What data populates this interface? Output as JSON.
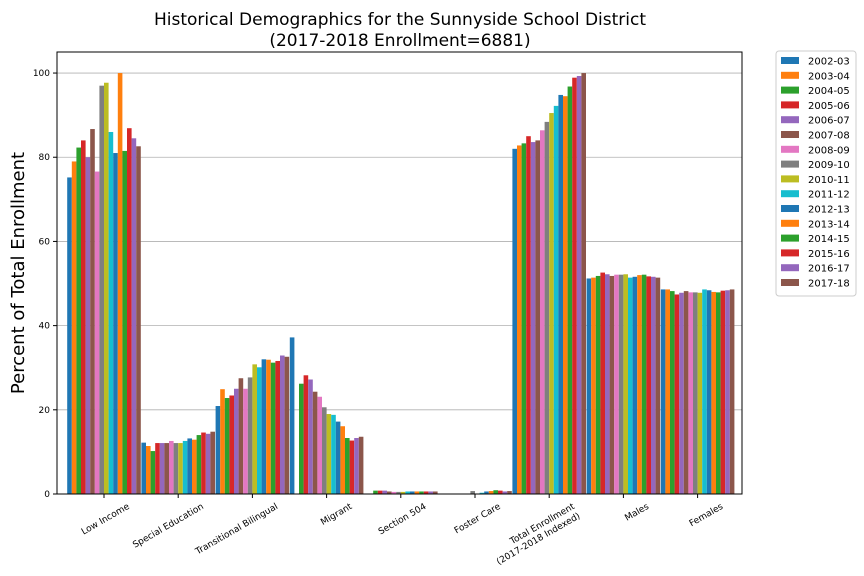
{
  "chart_data": {
    "type": "bar",
    "title": "Historical Demographics for the Sunnyside School District",
    "subtitle": "(2017-2018 Enrollment=6881)",
    "xlabel": "",
    "ylabel": "Percent of Total Enrollment",
    "ylim": [
      0,
      105
    ],
    "yticks": [
      0,
      20,
      40,
      60,
      80,
      100
    ],
    "grid": "horizontal",
    "legend_position": "outside-top-right",
    "categories": [
      "Low Income",
      "Special Education",
      "Transitional Bilingual",
      "Migrant",
      "Section 504",
      "Foster Care",
      "Total Enrollment\n(2017-2018 Indexed)",
      "Males",
      "Females"
    ],
    "series": [
      {
        "name": "2002-03",
        "color": "#1f77b4",
        "values": [
          75.2,
          12.2,
          20.9,
          37.2,
          0,
          0,
          82.0,
          51.2,
          48.6
        ]
      },
      {
        "name": "2003-04",
        "color": "#ff7f0e",
        "values": [
          79.0,
          11.4,
          24.9,
          0,
          0,
          0,
          82.8,
          51.4,
          48.6
        ]
      },
      {
        "name": "2004-05",
        "color": "#2ca02c",
        "values": [
          82.3,
          10.2,
          22.8,
          26.2,
          0.8,
          0,
          83.3,
          51.8,
          48.2
        ]
      },
      {
        "name": "2005-06",
        "color": "#d62728",
        "values": [
          84.0,
          12.1,
          23.4,
          28.2,
          0.8,
          0,
          85.0,
          52.6,
          47.4
        ]
      },
      {
        "name": "2006-07",
        "color": "#9467bd",
        "values": [
          80.0,
          12.1,
          25.0,
          27.2,
          0.8,
          0,
          83.6,
          52.2,
          47.8
        ]
      },
      {
        "name": "2007-08",
        "color": "#8c564b",
        "values": [
          86.7,
          12.1,
          27.5,
          24.3,
          0.6,
          0,
          84.0,
          51.8,
          48.2
        ]
      },
      {
        "name": "2008-09",
        "color": "#e377c2",
        "values": [
          76.6,
          12.6,
          25.0,
          23.1,
          0.5,
          0,
          86.4,
          52.1,
          47.9
        ]
      },
      {
        "name": "2009-10",
        "color": "#7f7f7f",
        "values": [
          97.0,
          12.1,
          27.7,
          20.6,
          0.5,
          0.7,
          88.4,
          52.1,
          47.9
        ]
      },
      {
        "name": "2010-11",
        "color": "#bcbd22",
        "values": [
          97.7,
          12.1,
          30.8,
          19.0,
          0.5,
          0,
          90.5,
          52.2,
          47.8
        ]
      },
      {
        "name": "2011-12",
        "color": "#17becf",
        "values": [
          86.0,
          12.6,
          30.1,
          18.8,
          0.6,
          0.3,
          92.2,
          51.4,
          48.6
        ]
      },
      {
        "name": "2012-13",
        "color": "#1f77b4",
        "values": [
          81.0,
          13.2,
          32.0,
          17.2,
          0.6,
          0.6,
          94.8,
          51.6,
          48.4
        ]
      },
      {
        "name": "2013-14",
        "color": "#ff7f0e",
        "values": [
          100.0,
          12.9,
          31.9,
          16.1,
          0.6,
          0.7,
          94.5,
          52.0,
          48.0
        ]
      },
      {
        "name": "2014-15",
        "color": "#2ca02c",
        "values": [
          81.5,
          14.0,
          31.2,
          13.3,
          0.6,
          0.9,
          96.8,
          52.1,
          47.9
        ]
      },
      {
        "name": "2015-16",
        "color": "#d62728",
        "values": [
          86.9,
          14.6,
          31.6,
          12.7,
          0.6,
          0.8,
          98.9,
          51.7,
          48.3
        ]
      },
      {
        "name": "2016-17",
        "color": "#9467bd",
        "values": [
          84.5,
          14.3,
          32.9,
          13.3,
          0.6,
          0.6,
          99.3,
          51.6,
          48.4
        ]
      },
      {
        "name": "2017-18",
        "color": "#8c564b",
        "values": [
          82.6,
          14.8,
          32.6,
          13.6,
          0.6,
          0.7,
          100.0,
          51.4,
          48.6
        ]
      }
    ]
  }
}
